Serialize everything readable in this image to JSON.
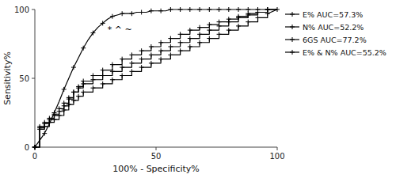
{
  "chart_data": {
    "type": "line",
    "xlabel": "100% - Specificity%",
    "ylabel": "Sensitivity%",
    "annotation": "* ^ ~",
    "xlim": [
      0,
      100
    ],
    "ylim": [
      0,
      100
    ],
    "xticks": [
      0,
      50,
      100
    ],
    "yticks": [
      0,
      50,
      100
    ],
    "grid": false,
    "legend": "right",
    "series": [
      {
        "name": "E% AUC=57.3%",
        "color": "#000000",
        "marker": "plus",
        "x": [
          0,
          2,
          2,
          4,
          4,
          6,
          6,
          8,
          8,
          10,
          10,
          12,
          12,
          14,
          14,
          16,
          16,
          18,
          18,
          20,
          20,
          24,
          24,
          28,
          28,
          32,
          32,
          36,
          36,
          40,
          40,
          44,
          44,
          48,
          48,
          52,
          52,
          56,
          56,
          60,
          60,
          64,
          64,
          68,
          68,
          72,
          72,
          76,
          76,
          80,
          80,
          84,
          84,
          88,
          88,
          92,
          92,
          96,
          96,
          100
        ],
        "values": [
          0,
          0,
          14,
          14,
          17,
          17,
          20,
          20,
          23,
          23,
          26,
          26,
          30,
          30,
          35,
          35,
          40,
          40,
          44,
          44,
          48,
          48,
          52,
          52,
          56,
          56,
          60,
          60,
          64,
          64,
          67,
          67,
          70,
          70,
          73,
          73,
          76,
          76,
          79,
          79,
          82,
          82,
          85,
          85,
          87,
          87,
          89,
          89,
          91,
          91,
          93,
          93,
          95,
          95,
          97,
          97,
          98,
          98,
          100,
          100
        ]
      },
      {
        "name": "N% AUC=52.2%",
        "color": "#000000",
        "marker": "plus",
        "x": [
          0,
          2,
          2,
          4,
          4,
          6,
          6,
          8,
          8,
          10,
          10,
          12,
          12,
          14,
          14,
          16,
          16,
          18,
          18,
          20,
          20,
          24,
          24,
          28,
          28,
          32,
          32,
          36,
          36,
          40,
          40,
          44,
          44,
          48,
          48,
          52,
          52,
          56,
          56,
          60,
          60,
          64,
          64,
          68,
          68,
          72,
          72,
          76,
          76,
          80,
          80,
          84,
          84,
          88,
          88,
          92,
          92,
          96,
          96,
          100
        ],
        "values": [
          0,
          0,
          13,
          13,
          15,
          15,
          18,
          18,
          20,
          20,
          23,
          23,
          27,
          27,
          31,
          31,
          34,
          34,
          37,
          37,
          40,
          40,
          43,
          43,
          46,
          46,
          49,
          49,
          52,
          52,
          55,
          55,
          58,
          58,
          61,
          61,
          64,
          64,
          67,
          67,
          70,
          70,
          73,
          73,
          76,
          76,
          79,
          79,
          82,
          82,
          85,
          85,
          88,
          88,
          91,
          91,
          94,
          94,
          97,
          100
        ]
      },
      {
        "name": "6GS AUC=77.2%",
        "color": "#000000",
        "marker": "plus",
        "x": [
          0,
          2,
          4,
          6,
          8,
          10,
          12,
          14,
          16,
          18,
          20,
          22,
          24,
          26,
          28,
          30,
          32,
          34,
          36,
          38,
          40,
          42,
          44,
          46,
          48,
          50,
          52,
          54,
          56,
          58,
          60,
          62,
          64,
          66,
          68,
          70,
          72,
          74,
          76,
          78,
          80,
          82,
          84,
          86,
          88,
          90,
          92,
          94,
          96,
          98,
          100
        ],
        "values": [
          0,
          5,
          10,
          17,
          25,
          33,
          42,
          50,
          58,
          65,
          72,
          78,
          83,
          87,
          90,
          93,
          95,
          96,
          97,
          97,
          97,
          98,
          98,
          98,
          99,
          99,
          99,
          99,
          100,
          100,
          100,
          100,
          100,
          100,
          100,
          100,
          100,
          100,
          100,
          100,
          100,
          100,
          100,
          100,
          100,
          100,
          100,
          100,
          100,
          100,
          100
        ]
      },
      {
        "name": "E% & N% AUC=55.2%",
        "color": "#000000",
        "marker": "plus",
        "x": [
          0,
          2,
          2,
          4,
          4,
          6,
          6,
          8,
          8,
          10,
          10,
          12,
          12,
          14,
          14,
          16,
          16,
          18,
          18,
          20,
          20,
          24,
          24,
          28,
          28,
          32,
          32,
          36,
          36,
          40,
          40,
          44,
          44,
          48,
          48,
          52,
          52,
          56,
          56,
          60,
          60,
          64,
          64,
          68,
          68,
          72,
          72,
          76,
          76,
          80,
          80,
          84,
          84,
          88,
          88,
          92,
          92,
          96,
          96,
          100
        ],
        "values": [
          0,
          0,
          15,
          15,
          18,
          18,
          21,
          21,
          24,
          24,
          28,
          28,
          32,
          32,
          36,
          36,
          40,
          40,
          43,
          43,
          46,
          46,
          49,
          49,
          52,
          52,
          55,
          55,
          58,
          58,
          61,
          61,
          64,
          64,
          67,
          67,
          70,
          70,
          73,
          73,
          76,
          76,
          79,
          79,
          82,
          82,
          85,
          85,
          88,
          88,
          91,
          91,
          94,
          94,
          96,
          96,
          98,
          98,
          100,
          100
        ]
      }
    ]
  }
}
